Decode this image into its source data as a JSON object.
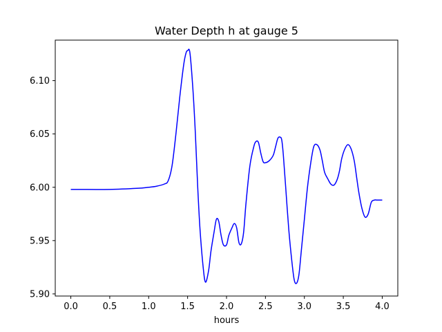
{
  "chart_data": {
    "type": "line",
    "title": "Water Depth h at gauge 5",
    "xlabel": "hours",
    "ylabel": "",
    "xlim": [
      -0.2,
      4.2
    ],
    "ylim": [
      5.898,
      6.138
    ],
    "xticks": [
      0.0,
      0.5,
      1.0,
      1.5,
      2.0,
      2.5,
      3.0,
      3.5,
      4.0
    ],
    "xtick_labels": [
      "0.0",
      "0.5",
      "1.0",
      "1.5",
      "2.0",
      "2.5",
      "3.0",
      "3.5",
      "4.0"
    ],
    "yticks": [
      5.9,
      5.95,
      6.0,
      6.05,
      6.1
    ],
    "ytick_labels": [
      "5.90",
      "5.95",
      "6.00",
      "6.05",
      "6.10"
    ],
    "grid": false,
    "series": [
      {
        "color": "#0000ff",
        "x": [
          0.0,
          0.5,
          0.85,
          1.0,
          1.1,
          1.2,
          1.25,
          1.3,
          1.35,
          1.4,
          1.45,
          1.48,
          1.5,
          1.53,
          1.57,
          1.6,
          1.63,
          1.66,
          1.7,
          1.73,
          1.77,
          1.8,
          1.84,
          1.87,
          1.9,
          1.93,
          1.96,
          2.0,
          2.03,
          2.07,
          2.1,
          2.13,
          2.16,
          2.19,
          2.22,
          2.25,
          2.3,
          2.35,
          2.38,
          2.41,
          2.44,
          2.47,
          2.5,
          2.55,
          2.6,
          2.63,
          2.66,
          2.69,
          2.71,
          2.73,
          2.76,
          2.8,
          2.84,
          2.87,
          2.9,
          2.93,
          2.96,
          3.0,
          3.04,
          3.08,
          3.12,
          3.16,
          3.2,
          3.23,
          3.26,
          3.3,
          3.34,
          3.38,
          3.42,
          3.45,
          3.48,
          3.52,
          3.56,
          3.6,
          3.64,
          3.67,
          3.7,
          3.74,
          3.78,
          3.82,
          3.86,
          3.9,
          3.93,
          3.96,
          4.0
        ],
        "y": [
          5.998,
          5.998,
          5.999,
          6.0,
          6.001,
          6.003,
          6.006,
          6.02,
          6.05,
          6.085,
          6.115,
          6.126,
          6.128,
          6.126,
          6.09,
          6.05,
          6.0,
          5.96,
          5.925,
          5.911,
          5.922,
          5.94,
          5.958,
          5.97,
          5.968,
          5.955,
          5.946,
          5.946,
          5.955,
          5.962,
          5.966,
          5.962,
          5.948,
          5.947,
          5.958,
          5.985,
          6.02,
          6.038,
          6.043,
          6.042,
          6.032,
          6.024,
          6.023,
          6.025,
          6.03,
          6.038,
          6.046,
          6.047,
          6.044,
          6.03,
          6.0,
          5.96,
          5.93,
          5.913,
          5.91,
          5.918,
          5.94,
          5.97,
          6.0,
          6.022,
          6.038,
          6.04,
          6.035,
          6.025,
          6.014,
          6.008,
          6.003,
          6.002,
          6.007,
          6.015,
          6.027,
          6.036,
          6.04,
          6.036,
          6.025,
          6.01,
          5.995,
          5.98,
          5.972,
          5.975,
          5.986,
          5.988,
          5.988,
          5.988,
          5.988
        ]
      }
    ]
  }
}
